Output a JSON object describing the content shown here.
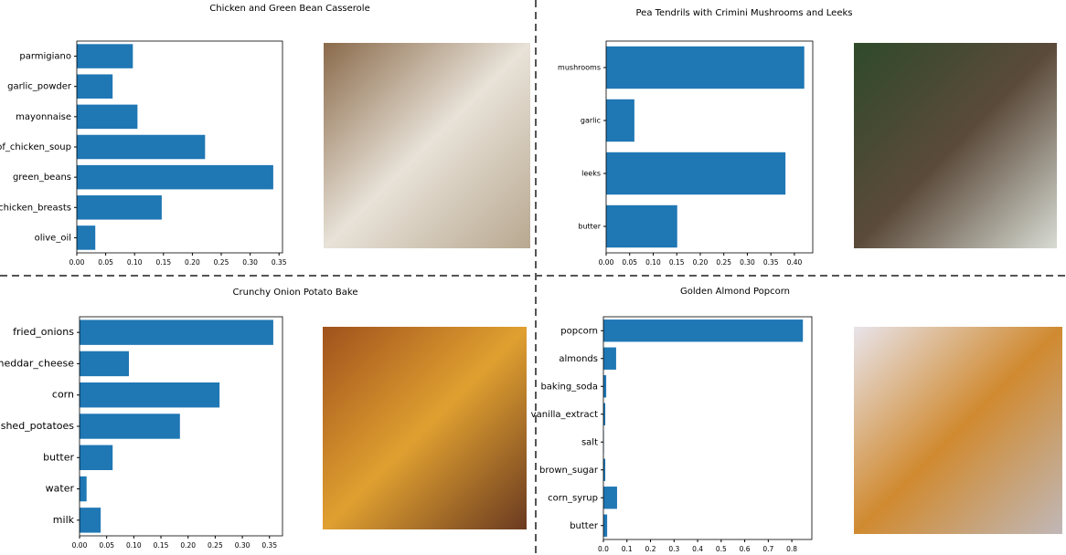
{
  "chart_data": [
    {
      "type": "barh",
      "title": "Chicken and Green Bean Casserole",
      "color": "#1f77b4",
      "categories": [
        "parmigiano",
        "garlic_powder",
        "mayonnaise",
        "_of_chicken_soup",
        "green_beans",
        "chicken_breasts",
        "olive_oil"
      ],
      "values": [
        0.097,
        0.062,
        0.105,
        0.222,
        0.34,
        0.147,
        0.032
      ],
      "xlim": [
        0,
        0.356
      ],
      "xticks": [
        {
          "value": 0,
          "label": "0.00"
        },
        {
          "value": 0.05,
          "label": "0.05"
        },
        {
          "value": 0.1,
          "label": "0.10"
        },
        {
          "value": 0.15,
          "label": "0.15"
        },
        {
          "value": 0.2,
          "label": "0.20"
        },
        {
          "value": 0.25,
          "label": "0.25"
        },
        {
          "value": 0.3,
          "label": "0.30"
        },
        {
          "value": 0.35,
          "label": "0.35"
        }
      ]
    },
    {
      "type": "barh",
      "title": "Pea Tendrils with Crimini Mushrooms and Leeks",
      "color": "#1f77b4",
      "categories": [
        "mushrooms",
        "garlic",
        "leeks",
        "butter"
      ],
      "values": [
        0.421,
        0.06,
        0.381,
        0.151
      ],
      "xlim": [
        0,
        0.439
      ],
      "xticks": [
        {
          "value": 0,
          "label": "0.00"
        },
        {
          "value": 0.05,
          "label": "0.05"
        },
        {
          "value": 0.1,
          "label": "0.10"
        },
        {
          "value": 0.15,
          "label": "0.15"
        },
        {
          "value": 0.2,
          "label": "0.20"
        },
        {
          "value": 0.25,
          "label": "0.25"
        },
        {
          "value": 0.3,
          "label": "0.30"
        },
        {
          "value": 0.35,
          "label": "0.35"
        },
        {
          "value": 0.4,
          "label": "0.40"
        }
      ]
    },
    {
      "type": "barh",
      "title": "Crunchy Onion Potato Bake",
      "color": "#1f77b4",
      "categories": [
        "fried_onions",
        "heddar_cheese",
        "corn",
        "shed_potatoes",
        "butter",
        "water",
        "milk"
      ],
      "values": [
        0.357,
        0.091,
        0.258,
        0.185,
        0.061,
        0.013,
        0.039
      ],
      "xlim": [
        0,
        0.374
      ],
      "xticks": [
        {
          "value": 0,
          "label": "0.00"
        },
        {
          "value": 0.05,
          "label": "0.05"
        },
        {
          "value": 0.1,
          "label": "0.10"
        },
        {
          "value": 0.15,
          "label": "0.15"
        },
        {
          "value": 0.2,
          "label": "0.20"
        },
        {
          "value": 0.25,
          "label": "0.25"
        },
        {
          "value": 0.3,
          "label": "0.30"
        },
        {
          "value": 0.35,
          "label": "0.35"
        }
      ]
    },
    {
      "type": "barh",
      "title": "Golden Almond Popcorn",
      "color": "#1f77b4",
      "categories": [
        "popcorn",
        "almonds",
        "baking_soda",
        "vanilla_extract",
        "salt",
        "brown_sugar",
        "corn_syrup",
        "butter"
      ],
      "values": [
        0.847,
        0.054,
        0.012,
        0.008,
        0.002,
        0.008,
        0.058,
        0.016
      ],
      "xlim": [
        0,
        0.885
      ],
      "xticks": [
        {
          "value": 0,
          "label": "0.0"
        },
        {
          "value": 0.1,
          "label": "0.1"
        },
        {
          "value": 0.2,
          "label": "0.2"
        },
        {
          "value": 0.3,
          "label": "0.3"
        },
        {
          "value": 0.4,
          "label": "0.4"
        },
        {
          "value": 0.5,
          "label": "0.5"
        },
        {
          "value": 0.6,
          "label": "0.6"
        },
        {
          "value": 0.7,
          "label": "0.7"
        },
        {
          "value": 0.8,
          "label": "0.8"
        }
      ]
    }
  ]
}
